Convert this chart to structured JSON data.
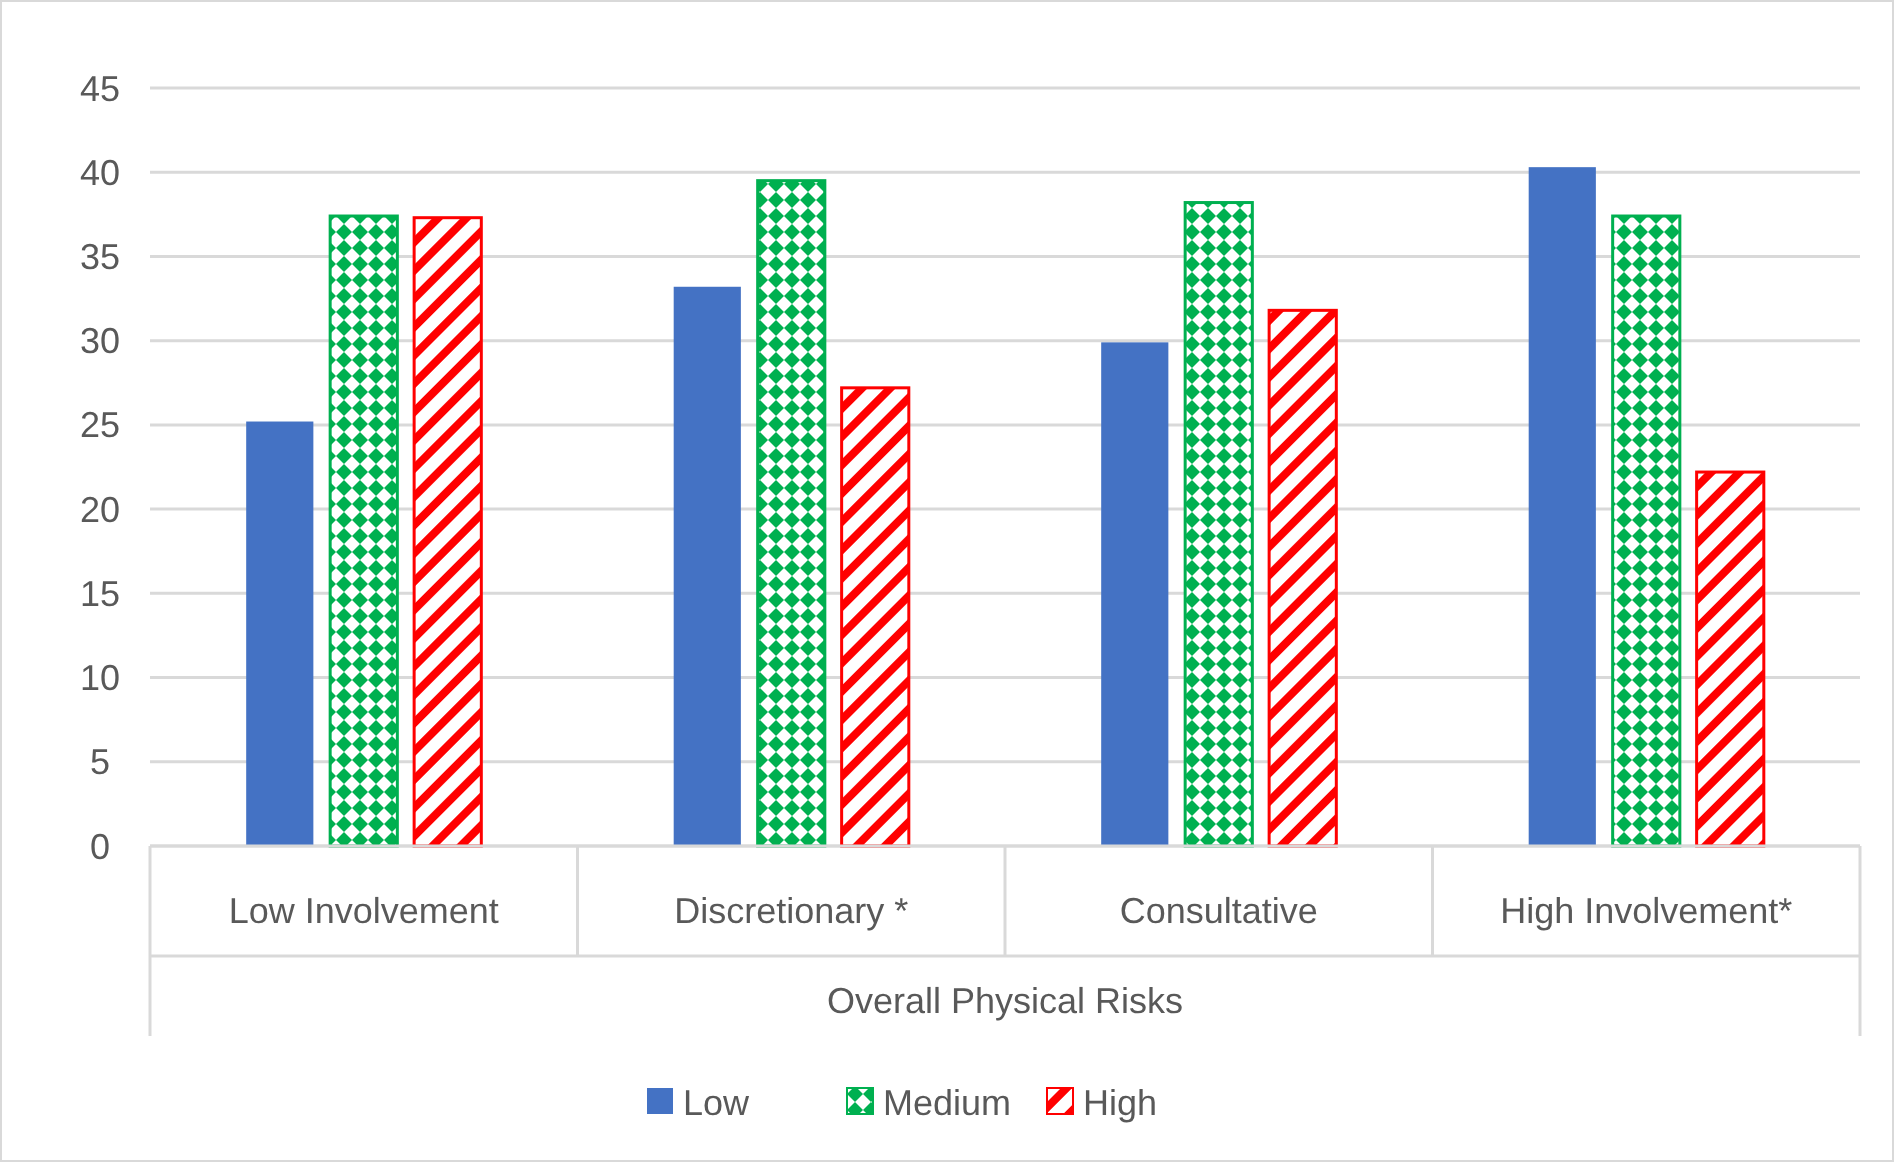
{
  "chart_data": {
    "type": "bar",
    "xlabel": "Overall Physical Risks",
    "categories": [
      "Low Involvement",
      "Discretionary *",
      "Consultative",
      "High Involvement*"
    ],
    "series": [
      {
        "name": "Low",
        "color": "#4472c4",
        "values": [
          25.2,
          33.2,
          29.9,
          40.3
        ]
      },
      {
        "name": "Medium",
        "color": "#00b050",
        "values": [
          37.4,
          39.5,
          38.2,
          37.4
        ]
      },
      {
        "name": "High",
        "color": "#ff0000",
        "values": [
          37.3,
          27.2,
          31.8,
          22.2
        ]
      }
    ],
    "ylim": [
      0,
      45
    ],
    "yticks": [
      0,
      5,
      10,
      15,
      20,
      25,
      30,
      35,
      40,
      45
    ],
    "grid": "y",
    "legend": "bottom"
  }
}
